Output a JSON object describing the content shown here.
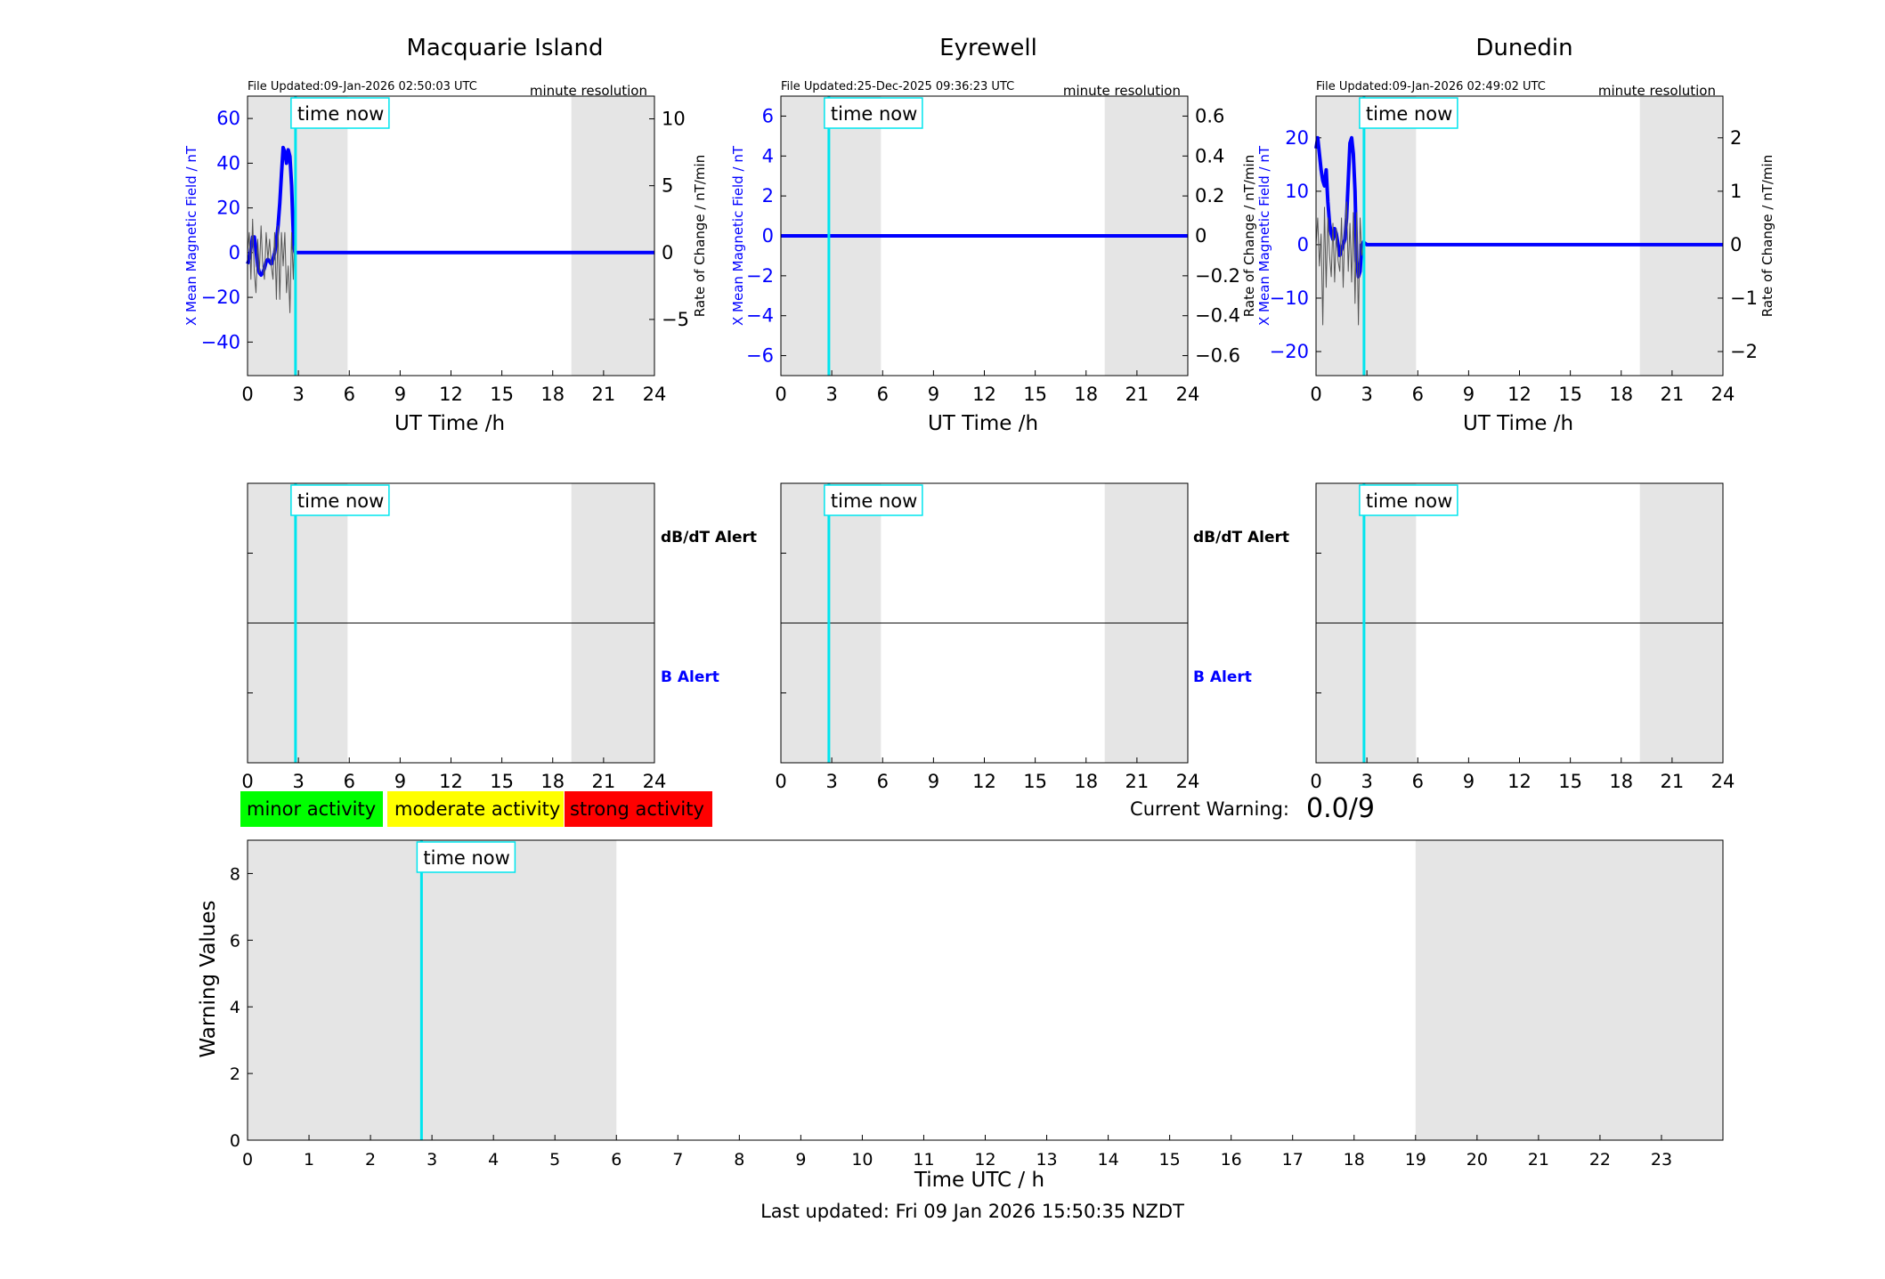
{
  "colors": {
    "x_series": "#0000ff",
    "rate_series": "#555555",
    "time_now": "#00e5ee",
    "night_shade": "#e5e5e5",
    "minor": "#00ff00",
    "moderate": "#ffff00",
    "strong": "#ff0000",
    "b_alert_label": "#0000ff"
  },
  "labels": {
    "time_now": "time now",
    "minute_resolution": "minute resolution",
    "ut_xlabel": "UT Time /h",
    "ylabel_left": "X Mean Magnetic Field / nT",
    "ylabel_right": "Rate of Change / nT/min",
    "dbdt_alert": "dB/dT Alert",
    "b_alert": "B Alert",
    "minor_activity": "minor activity",
    "moderate_activity": "moderate activity",
    "strong_activity": "strong activity",
    "current_warning_label": "Current Warning:",
    "current_warning_value": "0.0/9",
    "warning_ylabel": "Warning Values",
    "warning_xlabel": "Time UTC / h",
    "last_updated": "Last updated: Fri 09 Jan 2026 15:50:35 NZDT"
  },
  "chart_data": [
    {
      "type": "line",
      "title": "Macquarie Island",
      "file_updated": "File Updated:09-Jan-2026 02:50:03 UTC",
      "xlim": [
        0,
        24
      ],
      "xticks": [
        0,
        3,
        6,
        9,
        12,
        15,
        18,
        21,
        24
      ],
      "ylim": [
        -55,
        70
      ],
      "yticks": [
        -40,
        -20,
        0,
        20,
        40,
        60
      ],
      "y2lim": [
        -9.2,
        11.7
      ],
      "y2ticks": [
        -5,
        0,
        5,
        10
      ],
      "shade": [
        [
          0,
          5.9
        ],
        [
          19.1,
          24
        ]
      ],
      "time_now": 2.83,
      "series": [
        {
          "axis": "left",
          "x": [
            0,
            0.1,
            0.2,
            0.3,
            0.4,
            0.5,
            0.6,
            0.7,
            0.8,
            0.9,
            1.0,
            1.1,
            1.2,
            1.3,
            1.4,
            1.5,
            1.6,
            1.7,
            1.8,
            1.9,
            2.0,
            2.1,
            2.2,
            2.3,
            2.4,
            2.5,
            2.6,
            2.7,
            2.75,
            2.8,
            3.0,
            24
          ],
          "y": [
            -5,
            -3,
            2,
            7,
            7,
            1,
            -6,
            -9,
            -10,
            -9,
            -7,
            -4,
            -3,
            -4,
            -5,
            -3,
            0,
            5,
            12,
            22,
            35,
            47,
            45,
            40,
            46,
            43,
            30,
            8,
            2,
            0,
            0,
            0
          ]
        },
        {
          "axis": "right",
          "x": [
            0,
            0.1,
            0.2,
            0.3,
            0.4,
            0.5,
            0.6,
            0.7,
            0.8,
            0.9,
            1.0,
            1.1,
            1.2,
            1.3,
            1.4,
            1.5,
            1.6,
            1.7,
            1.8,
            1.9,
            2.0,
            2.1,
            2.2,
            2.3,
            2.4,
            2.5,
            2.6,
            2.7,
            2.75,
            2.8
          ],
          "y": [
            0,
            1.5,
            -2,
            2.5,
            -1.5,
            -3,
            1,
            -1.5,
            2,
            -1,
            -2,
            1.5,
            -0.5,
            1,
            -1,
            -2,
            1.5,
            -3.5,
            2,
            -3.5,
            1.5,
            -1,
            1.5,
            -3,
            -1,
            -4.5,
            1.5,
            -2,
            0.5,
            0
          ]
        }
      ]
    },
    {
      "type": "line",
      "title": "Eyrewell",
      "file_updated": "File Updated:25-Dec-2025 09:36:23 UTC",
      "xlim": [
        0,
        24
      ],
      "xticks": [
        0,
        3,
        6,
        9,
        12,
        15,
        18,
        21,
        24
      ],
      "ylim": [
        -7,
        7
      ],
      "yticks": [
        -6,
        -4,
        -2,
        0,
        2,
        4,
        6
      ],
      "y2lim": [
        -0.7,
        0.7
      ],
      "y2ticks": [
        -0.6,
        -0.4,
        -0.2,
        0,
        0.2,
        0.4,
        0.6
      ],
      "shade": [
        [
          0,
          5.9
        ],
        [
          19.1,
          24
        ]
      ],
      "time_now": 2.83,
      "series": [
        {
          "axis": "left",
          "x": [
            0,
            24
          ],
          "y": [
            0,
            0
          ]
        }
      ]
    },
    {
      "type": "line",
      "title": "Dunedin",
      "file_updated": "File Updated:09-Jan-2026 02:49:02 UTC",
      "xlim": [
        0,
        24
      ],
      "xticks": [
        0,
        3,
        6,
        9,
        12,
        15,
        18,
        21,
        24
      ],
      "ylim": [
        -24.5,
        27.8
      ],
      "yticks": [
        -20,
        -10,
        0,
        10,
        20
      ],
      "y2lim": [
        -2.45,
        2.78
      ],
      "y2ticks": [
        -2,
        -1,
        0,
        1,
        2
      ],
      "shade": [
        [
          0,
          5.9
        ],
        [
          19.1,
          24
        ]
      ],
      "time_now": 2.83,
      "series": [
        {
          "axis": "left",
          "x": [
            0,
            0.1,
            0.2,
            0.3,
            0.4,
            0.5,
            0.6,
            0.7,
            0.8,
            0.9,
            1.0,
            1.1,
            1.2,
            1.3,
            1.4,
            1.5,
            1.6,
            1.7,
            1.8,
            1.9,
            2.0,
            2.1,
            2.2,
            2.3,
            2.4,
            2.5,
            2.6,
            2.7,
            2.8,
            3.0,
            24
          ],
          "y": [
            18,
            20,
            17,
            14,
            12,
            11,
            14,
            8,
            4,
            2,
            1,
            3,
            2,
            0,
            -2,
            -1,
            0,
            1,
            5,
            12,
            19,
            20,
            17,
            10,
            -3,
            -6,
            -5,
            0,
            0.5,
            0,
            0
          ]
        },
        {
          "axis": "right",
          "x": [
            0,
            0.1,
            0.2,
            0.3,
            0.4,
            0.5,
            0.6,
            0.7,
            0.8,
            0.9,
            1.0,
            1.1,
            1.2,
            1.3,
            1.4,
            1.5,
            1.6,
            1.7,
            1.8,
            1.9,
            2.0,
            2.1,
            2.2,
            2.3,
            2.4,
            2.5,
            2.6,
            2.7,
            2.8
          ],
          "y": [
            0,
            0.5,
            -0.4,
            0.2,
            -1.5,
            0.7,
            -0.8,
            0.5,
            -0.2,
            -0.6,
            0.4,
            -0.7,
            0.3,
            -0.3,
            -0.5,
            0.5,
            -0.8,
            0.3,
            0.8,
            -0.5,
            0.4,
            -0.7,
            0.6,
            -1.1,
            0.6,
            -1.5,
            0.5,
            -0.2,
            0
          ]
        }
      ]
    },
    {
      "type": "line",
      "title": "",
      "xlim": [
        0,
        24
      ],
      "xticks": [
        0,
        3,
        6,
        9,
        12,
        15,
        18,
        21,
        24
      ],
      "ylim": [
        -1,
        1
      ],
      "yticks": [
        -0.5,
        0,
        0.5
      ],
      "show_ytick_labels": false,
      "shade": [
        [
          0,
          5.9
        ],
        [
          19.1,
          24
        ]
      ],
      "time_now": 2.83,
      "side_labels": [
        "dB/dT Alert",
        "B Alert"
      ],
      "series": [
        {
          "name": "dB/dT Alert",
          "axis": "left",
          "x": [
            0,
            24
          ],
          "y": [
            0,
            0
          ]
        },
        {
          "name": "B Alert",
          "axis": "left",
          "x": [
            0,
            24
          ],
          "y": [
            0,
            0
          ]
        }
      ]
    },
    {
      "type": "line",
      "title": "",
      "xlim": [
        0,
        24
      ],
      "xticks": [
        0,
        3,
        6,
        9,
        12,
        15,
        18,
        21,
        24
      ],
      "ylim": [
        -1,
        1
      ],
      "yticks": [
        -0.5,
        0,
        0.5
      ],
      "show_ytick_labels": false,
      "shade": [
        [
          0,
          5.9
        ],
        [
          19.1,
          24
        ]
      ],
      "time_now": 2.83,
      "side_labels": [
        "dB/dT Alert",
        "B Alert"
      ],
      "series": [
        {
          "name": "dB/dT Alert",
          "axis": "left",
          "x": [
            0,
            24
          ],
          "y": [
            0,
            0
          ]
        },
        {
          "name": "B Alert",
          "axis": "left",
          "x": [
            0,
            24
          ],
          "y": [
            0,
            0
          ]
        }
      ]
    },
    {
      "type": "line",
      "title": "",
      "xlim": [
        0,
        24
      ],
      "xticks": [
        0,
        3,
        6,
        9,
        12,
        15,
        18,
        21,
        24
      ],
      "ylim": [
        -1,
        1
      ],
      "yticks": [
        -0.5,
        0,
        0.5
      ],
      "show_ytick_labels": false,
      "shade": [
        [
          0,
          5.9
        ],
        [
          19.1,
          24
        ]
      ],
      "time_now": 2.83,
      "series": [
        {
          "axis": "left",
          "x": [
            0,
            24
          ],
          "y": [
            0,
            0
          ]
        }
      ]
    },
    {
      "type": "bar",
      "title": "",
      "xlabel": "Time UTC / h",
      "ylabel": "Warning Values",
      "xlim": [
        0,
        24
      ],
      "xticks": [
        0,
        1,
        2,
        3,
        4,
        5,
        6,
        7,
        8,
        9,
        10,
        11,
        12,
        13,
        14,
        15,
        16,
        17,
        18,
        19,
        20,
        21,
        22,
        23
      ],
      "ylim": [
        0,
        9
      ],
      "yticks": [
        0,
        2,
        4,
        6,
        8
      ],
      "shade": [
        [
          0,
          6
        ],
        [
          19,
          24
        ]
      ],
      "time_now": 2.83,
      "current_warning": 0.0,
      "values": []
    }
  ]
}
